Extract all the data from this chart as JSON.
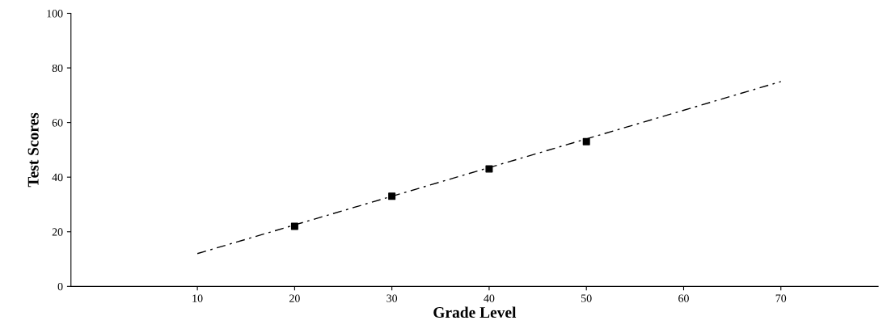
{
  "chart_data": {
    "type": "scatter",
    "xlabel": "Grade Level",
    "ylabel": "Test Scores",
    "xlim": [
      -3,
      80
    ],
    "xticks": [
      10,
      20,
      30,
      40,
      50,
      60,
      70
    ],
    "ylim": [
      0,
      100
    ],
    "yticks": [
      0,
      20,
      40,
      60,
      80,
      100
    ],
    "grid": false,
    "legend": false,
    "series": [
      {
        "color": "#000000",
        "marker": "square",
        "x": [
          20,
          30,
          40,
          50
        ],
        "values": [
          22,
          33,
          43,
          53
        ]
      },
      {
        "type": "line",
        "color": "#000000",
        "line_style": "dashed",
        "marker": "none",
        "x": [
          10,
          70
        ],
        "values": [
          12,
          75
        ]
      }
    ]
  }
}
